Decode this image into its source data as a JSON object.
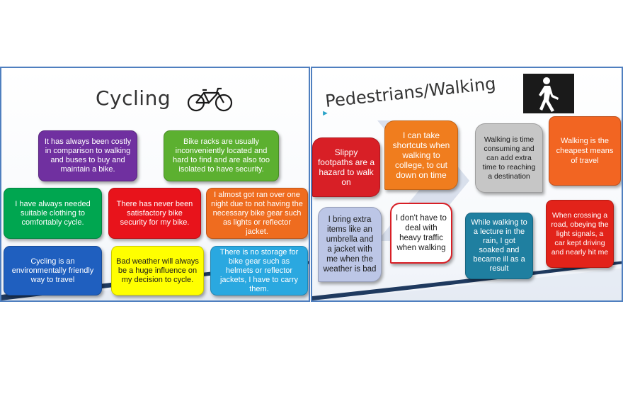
{
  "left_slide": {
    "title": "Cycling",
    "boxes": [
      "It has always been costly in comparison to walking and buses to buy and maintain a bike.",
      "Bike racks are usually inconveniently located and hard to find and are also too isolated to have security.",
      "I have always needed suitable clothing to comfortably cycle.",
      "There has never been satisfactory bike security for my bike.",
      "I almost got ran over one night due to not having the necessary bike gear such as lights or reflector jacket.",
      "Cycling is an environmentally friendly way to travel",
      "Bad weather will always be a huge influence on my decision to cycle.",
      "There is no storage for bike gear such as helmets or reflector jackets, I have to carry them."
    ],
    "colors": [
      "#7030a0",
      "#63b33b",
      "#00a650",
      "#e8131b",
      "#ef6c1f",
      "#1f5fbf",
      "#ffff00",
      "#2aa8e0"
    ]
  },
  "right_slide": {
    "title": "Pedestrians/Walking",
    "boxes": [
      "Slippy footpaths are a hazard to walk on",
      "I can take shortcuts when walking to college, to cut down on time",
      "Walking is time consuming and can add extra time to reaching a destination",
      "Walking is the cheapest means of travel",
      "I bring extra items like an umbrella and a jacket with me when the weather is bad",
      "I don't have to deal with heavy traffic when walking",
      "While walking to a lecture in the rain, I got soaked and became ill as a result",
      "When crossing a road, obeying the light signals, a car kept driving and nearly hit me"
    ],
    "colors": [
      "#d81f26",
      "#f07d1e",
      "#bfbfbf",
      "#f26522",
      "#bcc6e6",
      "#ffffff",
      "#2aa3c8",
      "#e2231a"
    ]
  },
  "icons": {
    "left": "bicycle-icon",
    "right": "pedestrian-walking-icon"
  }
}
